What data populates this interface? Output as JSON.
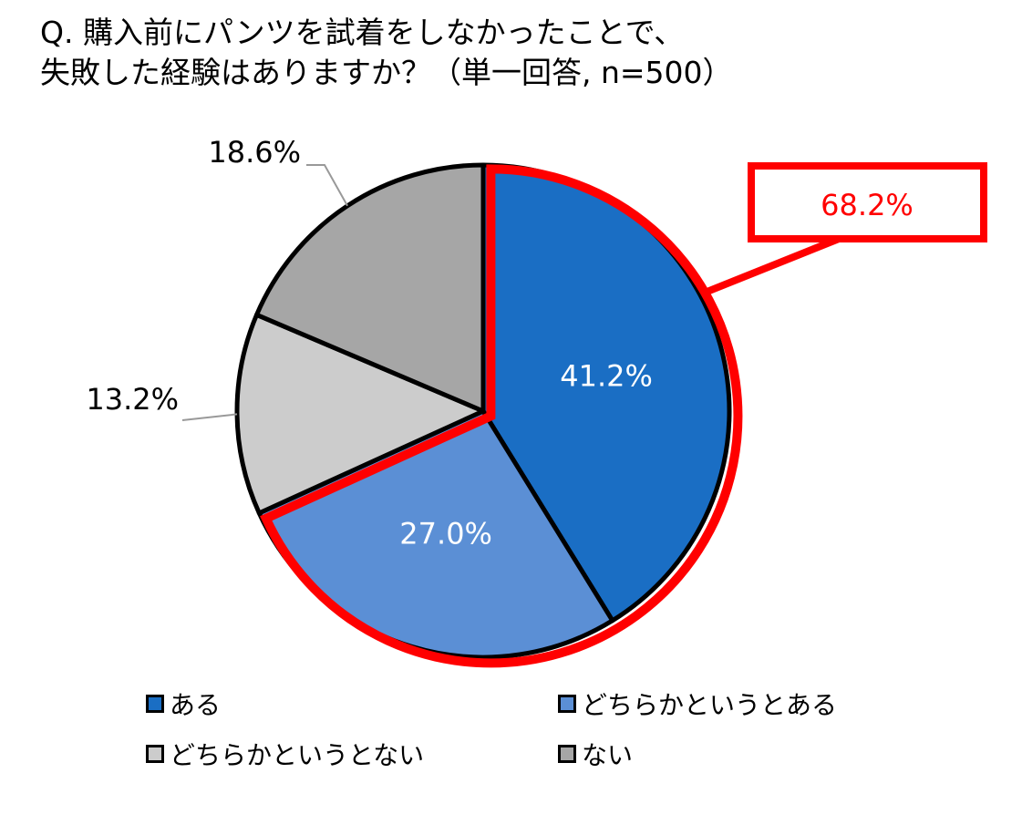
{
  "title": {
    "line1": "Q. 購入前にパンツを試着をしなかったことで、",
    "line2": "失敗した経験はありますか？（単一回答, n=500）"
  },
  "chart_data": {
    "type": "pie",
    "categories": [
      "ある",
      "どちらかというとある",
      "どちらかというとない",
      "ない"
    ],
    "values": [
      41.2,
      27.0,
      13.2,
      18.6
    ],
    "data_labels": [
      "41.2%",
      "27.0%",
      "13.2%",
      "18.6%"
    ],
    "colors": [
      "#1a6ec4",
      "#5b8fd5",
      "#cccccc",
      "#a6a6a6"
    ],
    "direction": "clockwise",
    "start_angle_deg": 0,
    "legend_position": "bottom",
    "highlight": {
      "label": "68.2%",
      "segments": [
        0,
        1
      ],
      "color": "#ff0000"
    }
  },
  "legend": {
    "items": [
      {
        "label": "ある",
        "color": "#1a6ec4"
      },
      {
        "label": "どちらかというとある",
        "color": "#5b8fd5"
      },
      {
        "label": "どちらかというとない",
        "color": "#cccccc"
      },
      {
        "label": "ない",
        "color": "#a6a6a6"
      }
    ]
  }
}
